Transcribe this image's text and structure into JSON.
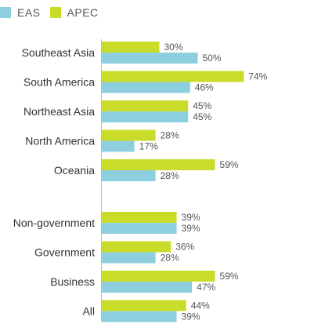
{
  "chart_data": {
    "type": "bar",
    "orientation": "horizontal",
    "series": [
      {
        "name": "EAS",
        "color": "#8ecfdf"
      },
      {
        "name": "APEC",
        "color": "#c9dc2a"
      }
    ],
    "groups": [
      {
        "categories": [
          "Southeast Asia",
          "South America",
          "Northeast Asia",
          "North America",
          "Oceania"
        ],
        "EAS": [
          50,
          46,
          45,
          17,
          28
        ],
        "APEC": [
          30,
          74,
          45,
          28,
          59
        ]
      },
      {
        "categories": [
          "Non-government",
          "Government",
          "Business",
          "All"
        ],
        "EAS": [
          39,
          28,
          47,
          39
        ],
        "APEC": [
          39,
          36,
          59,
          44
        ]
      }
    ],
    "value_suffix": "%",
    "xlim": [
      0,
      100
    ],
    "grid": false,
    "legend_position": "top-left"
  }
}
